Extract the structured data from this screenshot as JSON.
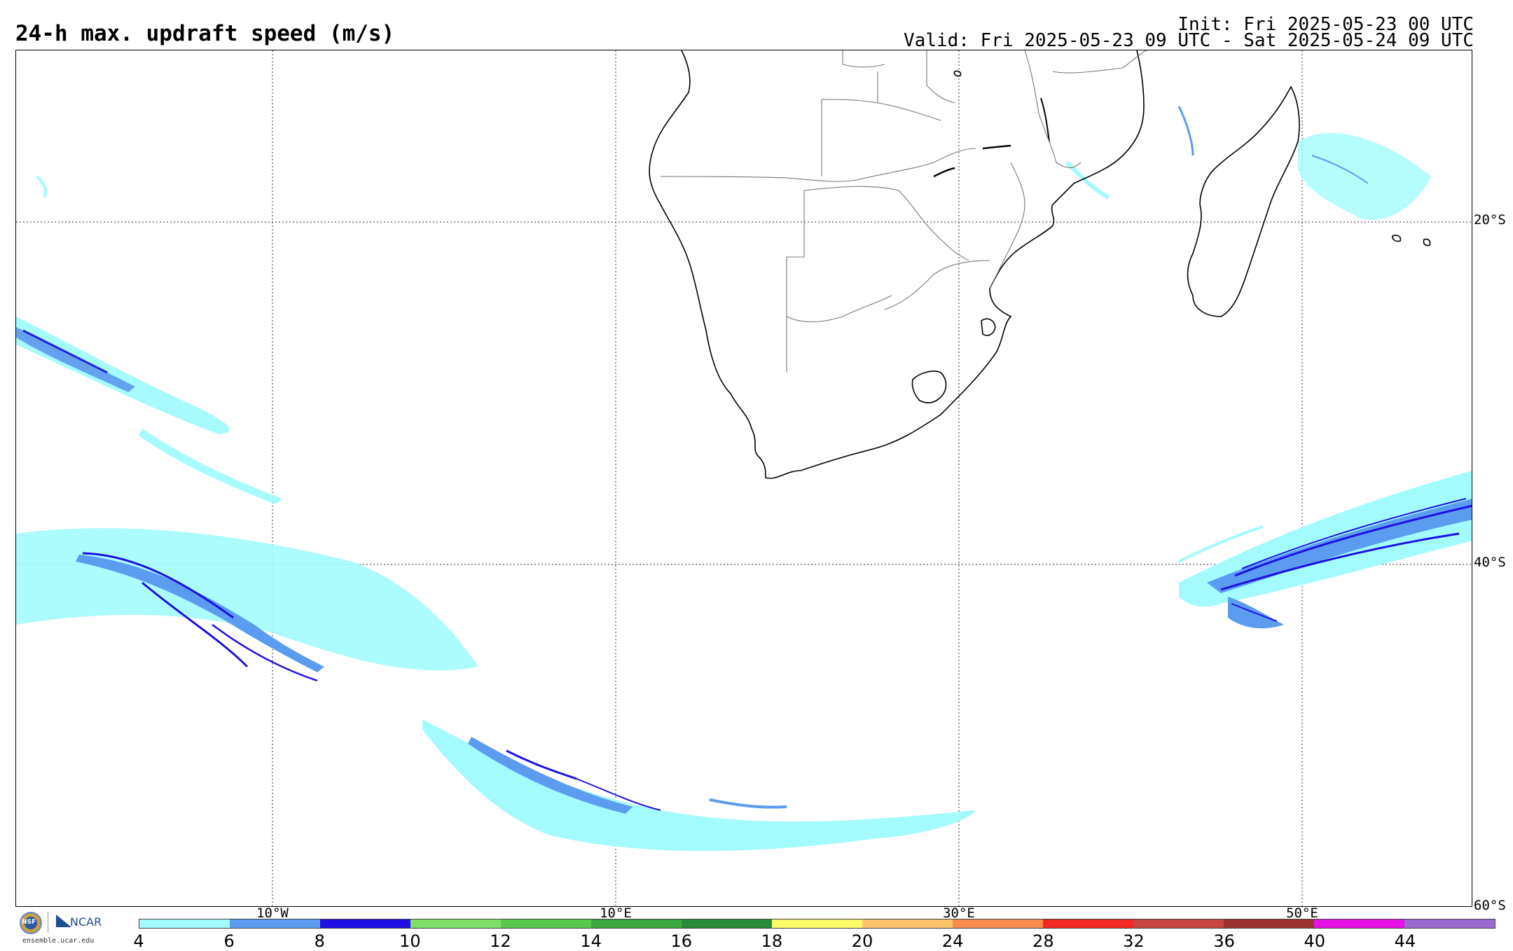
{
  "header": {
    "title": "24-h max. updraft speed (m/s)",
    "init": "Init: Fri 2025-05-23 00 UTC",
    "valid": "Valid: Fri 2025-05-23 09 UTC - Sat 2025-05-24 09 UTC"
  },
  "map": {
    "lat_labels": [
      "20°S",
      "40°S",
      "60°S"
    ],
    "lon_labels": [
      "10°W",
      "10°E",
      "30°E",
      "50°E"
    ],
    "gridline_style": "dotted",
    "land_outline_color": "#000000",
    "border_color": "#777777"
  },
  "colorbar": {
    "colors": [
      "#a3fbfd",
      "#5b9cf1",
      "#1e10e4",
      "#7ee06b",
      "#58c94c",
      "#3ca83f",
      "#2a8b3a",
      "#fdfb6a",
      "#fcc36b",
      "#f98c4d",
      "#f42722",
      "#c84640",
      "#9b3232",
      "#e612e3",
      "#9c69d1"
    ],
    "ticks": [
      "4",
      "6",
      "8",
      "10",
      "12",
      "14",
      "16",
      "18",
      "20",
      "24",
      "28",
      "32",
      "36",
      "40",
      "44"
    ]
  },
  "logos": {
    "nsf": "NSF",
    "ncar": "NCAR",
    "url": "ensemble.ucar.edu"
  }
}
